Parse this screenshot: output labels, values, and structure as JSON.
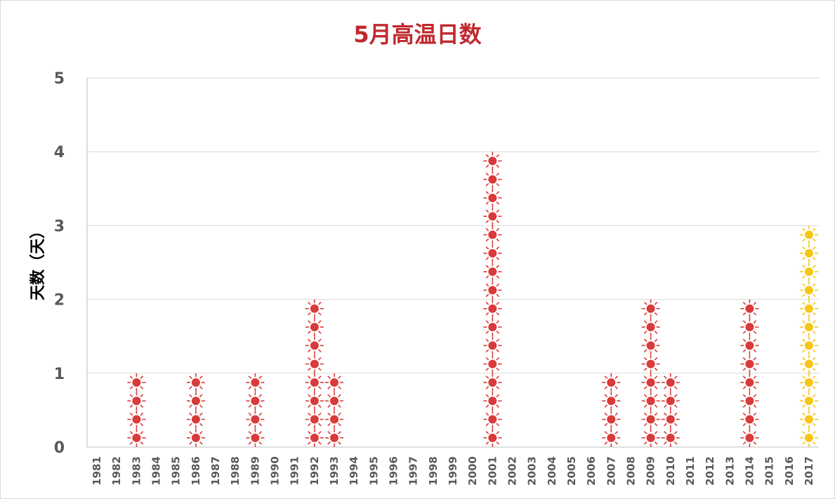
{
  "chart_data": {
    "type": "bar",
    "title": "5月高温日数",
    "ylabel": "天数（天）",
    "xlabel": "",
    "ylim": [
      0,
      5
    ],
    "yticks": [
      "0",
      "1",
      "2",
      "3",
      "4",
      "5"
    ],
    "categories": [
      "1981",
      "1982",
      "1983",
      "1984",
      "1985",
      "1986",
      "1987",
      "1988",
      "1989",
      "1990",
      "1991",
      "1992",
      "1993",
      "1994",
      "1995",
      "1996",
      "1997",
      "1998",
      "1999",
      "2000",
      "2001",
      "2002",
      "2003",
      "2004",
      "2005",
      "2006",
      "2007",
      "2008",
      "2009",
      "2010",
      "2011",
      "2012",
      "2013",
      "2014",
      "2015",
      "2016",
      "2017"
    ],
    "values": [
      0,
      0,
      1,
      0,
      0,
      1,
      0,
      0,
      1,
      0,
      0,
      2,
      1,
      0,
      0,
      0,
      0,
      0,
      0,
      0,
      4,
      0,
      0,
      0,
      0,
      0,
      1,
      0,
      2,
      1,
      0,
      0,
      0,
      2,
      0,
      0,
      3
    ],
    "highlight_category": "2017",
    "grid": true,
    "legend": "none"
  },
  "colors": {
    "title": "#c0282d",
    "sun_main": "#d93a3a",
    "sun_highlight": "#f5c518",
    "axis_text": "#595959",
    "grid": "#d9d9d9"
  }
}
